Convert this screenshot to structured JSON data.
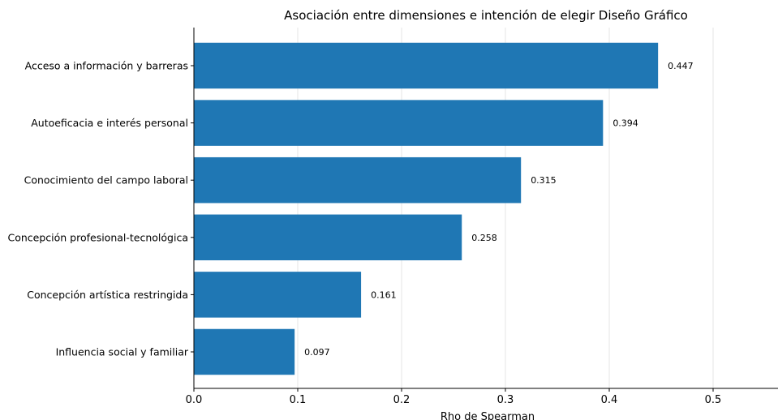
{
  "chart_data": {
    "type": "bar",
    "orientation": "horizontal",
    "title": "Asociación entre dimensiones e intención de elegir Diseño Gráfico",
    "xlabel": "Rho de Spearman",
    "ylabel": "",
    "categories": [
      "Acceso a información y barreras",
      "Autoeficacia e interés personal",
      "Conocimiento del campo laboral",
      "Concepción profesional-tecnológica",
      "Concepción artística restringida",
      "Influencia social y familiar"
    ],
    "values": [
      0.447,
      0.394,
      0.315,
      0.258,
      0.161,
      0.097
    ],
    "data_labels": [
      "0.447",
      "0.394",
      "0.315",
      "0.258",
      "0.161",
      "0.097"
    ],
    "xlim": [
      0,
      0.56
    ],
    "xticks": [
      0,
      0.1,
      0.2,
      0.3,
      0.4,
      0.5
    ],
    "xtick_labels": [
      "0.0",
      "0.1",
      "0.2",
      "0.3",
      "0.4",
      "0.5"
    ],
    "grid": "vertical",
    "bar_color": "#1f77b4",
    "grid_color": "#e6e6e6"
  }
}
